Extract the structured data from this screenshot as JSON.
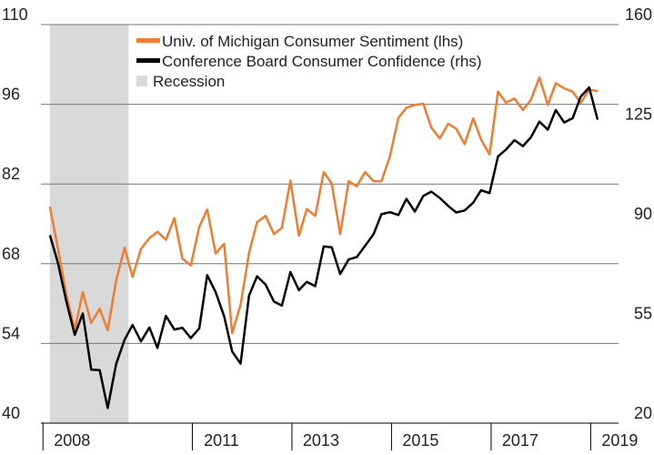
{
  "chart_data": {
    "type": "line",
    "x": [
      2007.92,
      2008.08,
      2008.25,
      2008.42,
      2008.58,
      2008.75,
      2008.92,
      2009.08,
      2009.25,
      2009.42,
      2009.58,
      2009.75,
      2009.92,
      2010.08,
      2010.25,
      2010.42,
      2010.58,
      2010.75,
      2010.92,
      2011.08,
      2011.25,
      2011.42,
      2011.58,
      2011.75,
      2011.92,
      2012.08,
      2012.25,
      2012.42,
      2012.58,
      2012.75,
      2012.92,
      2013.08,
      2013.25,
      2013.42,
      2013.58,
      2013.75,
      2013.92,
      2014.08,
      2014.25,
      2014.42,
      2014.58,
      2014.75,
      2014.92,
      2015.08,
      2015.25,
      2015.42,
      2015.58,
      2015.75,
      2015.92,
      2016.08,
      2016.25,
      2016.42,
      2016.58,
      2016.75,
      2016.92,
      2017.08,
      2017.25,
      2017.42,
      2017.58,
      2017.75,
      2017.92,
      2018.08,
      2018.25,
      2018.42,
      2018.58,
      2018.75,
      2018.92
    ],
    "series": [
      {
        "name": "Univ. of Michigan Consumer Sentiment (lhs)",
        "color": "#ee7d31",
        "axis": "y",
        "values": [
          78,
          70.8,
          62.6,
          56.4,
          63.0,
          57.6,
          60.1,
          56.3,
          65.1,
          70.8,
          65.7,
          70.6,
          72.5,
          73.6,
          72.2,
          76.0,
          68.9,
          67.7,
          74.5,
          77.5,
          69.8,
          71.5,
          55.8,
          60.8,
          69.9,
          75.3,
          76.4,
          73.2,
          74.3,
          82.6,
          72.9,
          77.6,
          76.4,
          84.1,
          82.1,
          73.2,
          82.5,
          81.6,
          84.1,
          82.5,
          82.5,
          86.9,
          93.6,
          95.4,
          95.9,
          96.1,
          91.9,
          90.0,
          92.6,
          91.7,
          89.0,
          93.5,
          89.8,
          87.2,
          98.2,
          96.3,
          97.0,
          95.0,
          96.8,
          100.7,
          95.9,
          99.7,
          98.8,
          98.2,
          96.2,
          98.6,
          98.3
        ]
      },
      {
        "name": "Conference Board Consumer Confidence (rhs)",
        "color": "#000000",
        "axis": "y2",
        "values": [
          86,
          76.4,
          62.8,
          51.0,
          58.5,
          38.8,
          38.6,
          25.3,
          40.8,
          49.3,
          54.5,
          48.7,
          53.6,
          46.4,
          57.7,
          52.9,
          53.5,
          49.9,
          53.3,
          72.0,
          66.0,
          57.6,
          45.2,
          40.9,
          64.8,
          71.6,
          68.7,
          62.7,
          61.3,
          73.1,
          66.7,
          69.6,
          68.1,
          82.1,
          81.8,
          72.4,
          77.5,
          78.3,
          82.3,
          86.4,
          93.4,
          94.1,
          93.1,
          98.8,
          94.3,
          99.8,
          101.3,
          99.1,
          96.3,
          94.0,
          94.7,
          97.4,
          101.8,
          100.8,
          113.7,
          116.1,
          119.4,
          117.3,
          120.4,
          125.9,
          123.1,
          130.0,
          125.6,
          127.1,
          134.7,
          137.9,
          126.6
        ]
      }
    ],
    "recession": {
      "name": "Recession",
      "color": "#d9d9d9",
      "range": [
        2007.92,
        2009.5
      ]
    },
    "xlim": [
      2007.74,
      2019.34
    ],
    "xticks": [
      2008,
      2011,
      2013,
      2015,
      2017,
      2019
    ],
    "ylim": [
      40,
      110
    ],
    "yticks": [
      40,
      54,
      68,
      82,
      96,
      110
    ],
    "y2lim": [
      20,
      160
    ],
    "y2ticks": [
      20,
      55,
      90,
      125,
      160
    ],
    "grid": true
  }
}
